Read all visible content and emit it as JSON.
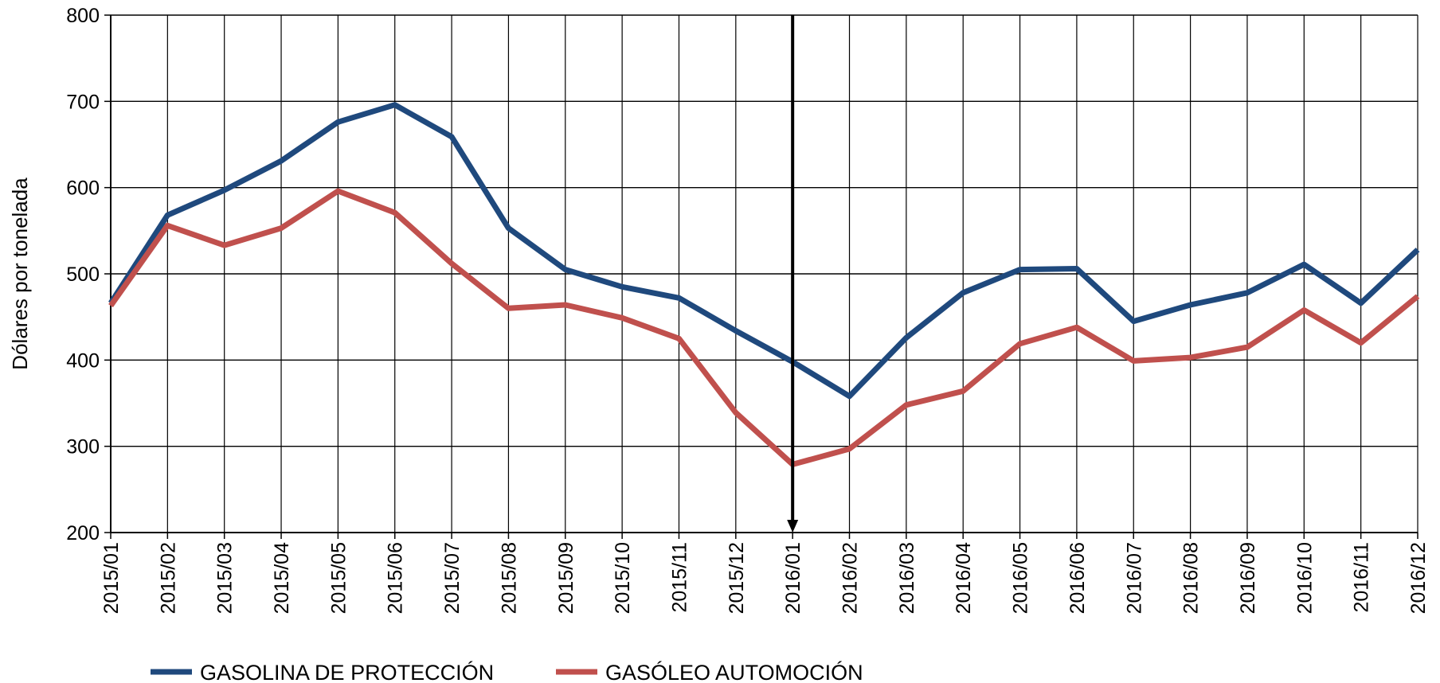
{
  "chart_data": {
    "type": "line",
    "title": "",
    "xlabel": "",
    "ylabel": "Dólares por tonelada",
    "ylim": [
      200,
      800
    ],
    "yticks": [
      200,
      300,
      400,
      500,
      600,
      700,
      800
    ],
    "grid": true,
    "legend_position": "bottom",
    "categories": [
      "2015/01",
      "2015/02",
      "2015/03",
      "2015/04",
      "2015/05",
      "2015/06",
      "2015/07",
      "2015/08",
      "2015/09",
      "2015/10",
      "2015/11",
      "2015/12",
      "2016/01",
      "2016/02",
      "2016/03",
      "2016/04",
      "2016/05",
      "2016/06",
      "2016/07",
      "2016/08",
      "2016/09",
      "2016/10",
      "2016/11",
      "2016/12"
    ],
    "series": [
      {
        "name": "GASOLINA DE PROTECCIÓN",
        "color": "#1f497d",
        "values": [
          466,
          568,
          597,
          631,
          676,
          696,
          659,
          553,
          505,
          485,
          472,
          434,
          398,
          358,
          426,
          478,
          505,
          506,
          445,
          464,
          478,
          511,
          466,
          528
        ]
      },
      {
        "name": "GASÓLEO AUTOMOCIÓN",
        "color": "#c0504d",
        "values": [
          463,
          556,
          533,
          553,
          596,
          571,
          512,
          460,
          464,
          449,
          425,
          339,
          279,
          297,
          348,
          364,
          419,
          438,
          399,
          403,
          415,
          458,
          420,
          474
        ]
      }
    ],
    "annotation": {
      "type": "down-arrow",
      "category": "2016/01"
    }
  }
}
